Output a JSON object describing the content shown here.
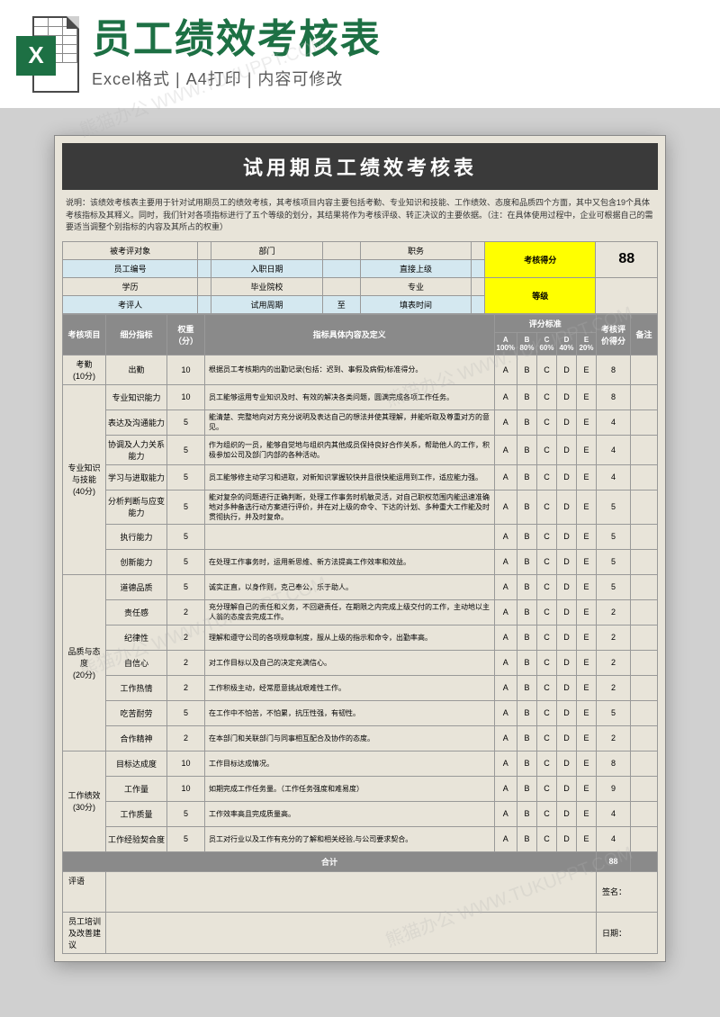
{
  "header": {
    "title": "员工绩效考核表",
    "subtitle": "Excel格式 | A4打印 | 内容可修改",
    "badge": "X"
  },
  "doc": {
    "title": "试用期员工绩效考核表",
    "note": "说明：该绩效考核表主要用于针对试用期员工的绩效考核，其考核项目内容主要包括考勤、专业知识和技能、工作绩效、态度和品质四个方面，其中又包含19个具体考核指标及其释义。同时，我们针对各项指标进行了五个等级的划分，其结果将作为考核评级、转正决议的主要依据。（注：在具体使用过程中，企业可根据自己的需要适当调整个别指标的内容及其所占的权重）"
  },
  "info_labels": {
    "r1": [
      "被考评对象",
      "部门",
      "职务",
      "考核得分"
    ],
    "r2": [
      "员工编号",
      "入职日期",
      "直接上级"
    ],
    "r3": [
      "学历",
      "毕业院校",
      "专业",
      "等级"
    ],
    "r4": [
      "考评人",
      "试用周期",
      "至",
      "填表时间"
    ]
  },
  "score_total": "88",
  "columns": {
    "c1": "考核项目",
    "c2": "细分指标",
    "c3": "权重（分）",
    "c4": "指标具体内容及定义",
    "std": "评分标准",
    "grades": [
      "A",
      "B",
      "C",
      "D",
      "E"
    ],
    "pct": [
      "100%",
      "80%",
      "60%",
      "40%",
      "20%"
    ],
    "c5": "考核评价得分",
    "c6": "备注"
  },
  "sections": [
    {
      "name": "考勤\n(10分)",
      "rows": [
        {
          "ind": "出勤",
          "w": "10",
          "desc": "根据员工考核期内的出勤记录(包括：迟到、事假及病假)标准得分。",
          "g": [
            "A",
            "B",
            "C",
            "D",
            "E"
          ],
          "s": "8"
        }
      ]
    },
    {
      "name": "专业知识与技能\n(40分)",
      "rows": [
        {
          "ind": "专业知识能力",
          "w": "10",
          "desc": "员工能够运用专业知识及时、有效的解决各类问题，圆满完成各项工作任务。",
          "g": [
            "A",
            "B",
            "C",
            "D",
            "E"
          ],
          "s": "8"
        },
        {
          "ind": "表达及沟通能力",
          "w": "5",
          "desc": "能清楚、完整地向对方充分说明及表达自己的想法并使其理解，并能听取及尊重对方的意见。",
          "g": [
            "A",
            "B",
            "C",
            "D",
            "E"
          ],
          "s": "4"
        },
        {
          "ind": "协调及人力关系能力",
          "w": "5",
          "desc": "作为组织的一员，能够自觉地与组织内其他成员保持良好合作关系，帮助他人的工作，积极参加公司及部门内部的各种活动。",
          "g": [
            "A",
            "B",
            "C",
            "D",
            "E"
          ],
          "s": "4"
        },
        {
          "ind": "学习与进取能力",
          "w": "5",
          "desc": "员工能够修主动学习和进取，对新知识掌握较快并且很快能运用到工作，适应能力强。",
          "g": [
            "A",
            "B",
            "C",
            "D",
            "E"
          ],
          "s": "4"
        },
        {
          "ind": "分析判断与应变能力",
          "w": "5",
          "desc": "能对复杂的问题进行正确判断，处理工作事务时机敏灵活，对自己职权范围内能迅速准确地对多种备选行动方案进行评价，并在对上级的命令、下达的计划、多种重大工作能及时贯彻执行，并及时复命。",
          "g": [
            "A",
            "B",
            "C",
            "D",
            "E"
          ],
          "s": "5"
        },
        {
          "ind": "执行能力",
          "w": "5",
          "desc": "",
          "g": [
            "A",
            "B",
            "C",
            "D",
            "E"
          ],
          "s": "5"
        },
        {
          "ind": "创新能力",
          "w": "5",
          "desc": "在处理工作事务时，运用新思维、新方法提高工作效率和效益。",
          "g": [
            "A",
            "B",
            "C",
            "D",
            "E"
          ],
          "s": "5"
        }
      ]
    },
    {
      "name": "品质与态度\n(20分)",
      "rows": [
        {
          "ind": "道德品质",
          "w": "5",
          "desc": "诚实正直，以身作则，克己奉公，乐于助人。",
          "g": [
            "A",
            "B",
            "C",
            "D",
            "E"
          ],
          "s": "5"
        },
        {
          "ind": "责任感",
          "w": "2",
          "desc": "充分理解自己的责任和义务，不回避责任，在期限之内完成上级交付的工作，主动地以主人翁的态度去完成工作。",
          "g": [
            "A",
            "B",
            "C",
            "D",
            "E"
          ],
          "s": "2"
        },
        {
          "ind": "纪律性",
          "w": "2",
          "desc": "理解和遵守公司的各项规章制度，服从上级的指示和命令，出勤率高。",
          "g": [
            "A",
            "B",
            "C",
            "D",
            "E"
          ],
          "s": "2"
        },
        {
          "ind": "自信心",
          "w": "2",
          "desc": "对工作目标以及自己的决定充满信心。",
          "g": [
            "A",
            "B",
            "C",
            "D",
            "E"
          ],
          "s": "2"
        },
        {
          "ind": "工作热情",
          "w": "2",
          "desc": "工作积极主动，经常愿意挑战艰难性工作。",
          "g": [
            "A",
            "B",
            "C",
            "D",
            "E"
          ],
          "s": "2"
        },
        {
          "ind": "吃苦耐劳",
          "w": "5",
          "desc": "在工作中不怕苦，不怕累，抗压性强，有韧性。",
          "g": [
            "A",
            "B",
            "C",
            "D",
            "E"
          ],
          "s": "5"
        },
        {
          "ind": "合作精神",
          "w": "2",
          "desc": "在本部门和关联部门与同事相互配合及协作的态度。",
          "g": [
            "A",
            "B",
            "C",
            "D",
            "E"
          ],
          "s": "2"
        }
      ]
    },
    {
      "name": "工作绩效\n(30分)",
      "rows": [
        {
          "ind": "目标达成度",
          "w": "10",
          "desc": "工作目标达成情况。",
          "g": [
            "A",
            "B",
            "C",
            "D",
            "E"
          ],
          "s": "8"
        },
        {
          "ind": "工作量",
          "w": "10",
          "desc": "如期完成工作任务量。（工作任务强度和难易度）",
          "g": [
            "A",
            "B",
            "C",
            "D",
            "E"
          ],
          "s": "9"
        },
        {
          "ind": "工作质量",
          "w": "5",
          "desc": "工作效率高且完成质量高。",
          "g": [
            "A",
            "B",
            "C",
            "D",
            "E"
          ],
          "s": "4"
        },
        {
          "ind": "工作经验契合度",
          "w": "5",
          "desc": "员工对行业以及工作有充分的了解和相关经验,与公司要求契合。",
          "g": [
            "A",
            "B",
            "C",
            "D",
            "E"
          ],
          "s": "4"
        }
      ]
    }
  ],
  "total": {
    "label": "合计",
    "value": "88"
  },
  "footer": {
    "r1a": "评语",
    "r1b": "签名：",
    "r2a": "员工培训及改善建议",
    "r2b": "日期："
  },
  "colors": {
    "brand": "#1d7044",
    "dark": "#3a3a3a",
    "section_head": "#8a8a8a",
    "paper": "#e8e4d9",
    "info_blue": "#d4e8f0",
    "highlight": "#ffff00"
  }
}
